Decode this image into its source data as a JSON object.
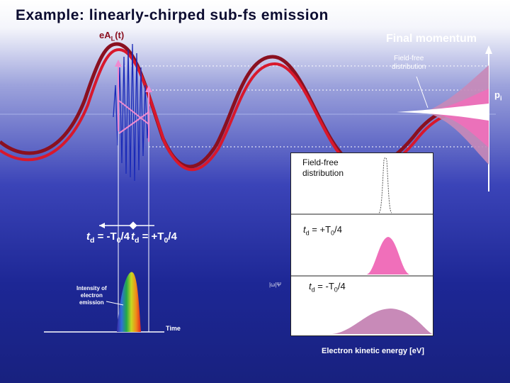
{
  "slide": {
    "title": "Example: linearly-chirped sub-fs emission"
  },
  "main_diagram": {
    "field_label": {
      "prefix": "eA",
      "sub": "L",
      "suffix": "(t)"
    },
    "final_momentum_title": "Final momentum",
    "field_free_top": {
      "line1": "Field-free",
      "line2": "distribution"
    },
    "pi_label": {
      "base": "p",
      "sub": "i"
    },
    "td_neg_label": {
      "prefix": "t",
      "sub": "d",
      "mid": " = -T",
      "sub2": "0",
      "suffix": "/4"
    },
    "td_pos_label": {
      "prefix": "t",
      "sub": "d",
      "mid": " = +T",
      "sub2": "0",
      "suffix": "/4"
    },
    "intensity_label": {
      "line1": "Intensity of",
      "line2": "electron",
      "line3": "emission"
    },
    "time_label": "Time",
    "small_label": "|ω|Ψ"
  },
  "spectrum_panel": {
    "field_free": {
      "line1": "Field-free",
      "line2": "distribution"
    },
    "td_pos": {
      "prefix": "t",
      "sub": "d",
      "mid": " =  +T",
      "sub2": "0",
      "suffix": "/4"
    },
    "td_neg": {
      "prefix": "t",
      "sub": "d",
      "mid": " = -T",
      "sub2": "0",
      "suffix": "/4"
    },
    "xaxis_label": "Electron kinetic energy [eV]"
  },
  "colors": {
    "title": "#0c0c30",
    "wave_dark": "#8a1020",
    "wave_red": "#d8182c",
    "pink": "#f06fba",
    "mauve": "#c88ab8",
    "panel_bg": "#ffffff"
  }
}
